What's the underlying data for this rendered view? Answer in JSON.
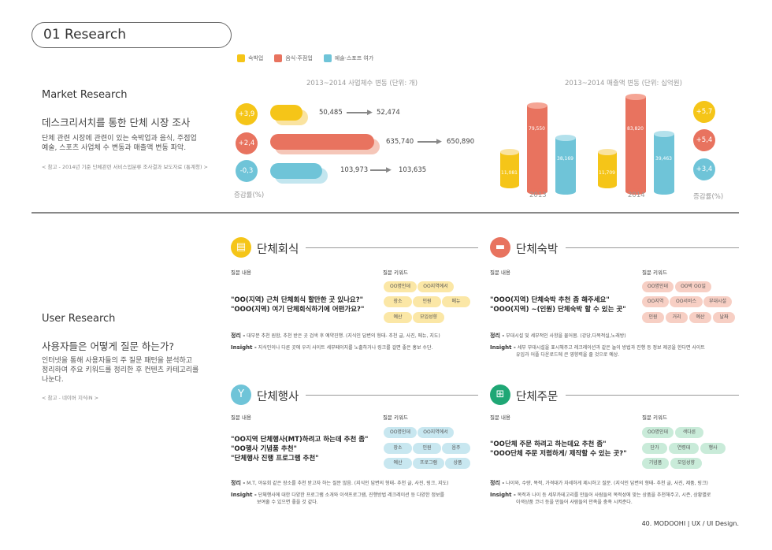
{
  "header": {
    "title": "01 Research"
  },
  "market": {
    "title": "Market Research",
    "subtitle": "데스크리서치를 통한 단체 시장 조사",
    "desc_1": "단체 관련 시장에 관련이 있는 숙박업과 음식, 주점업",
    "desc_2": "예술, 스포츠 사업체 수 변동과 매출액 변동 파악.",
    "note": "< 참고 - 2014년 기준 단체관련 서비스업분류 조사결과 보도자료 (통계청) >"
  },
  "legend": [
    {
      "label": "숙박업",
      "color": "#F5C518"
    },
    {
      "label": "음식·주점업",
      "color": "#E8735F"
    },
    {
      "label": "예술·스포프 여가",
      "color": "#6FC4D8"
    }
  ],
  "chart_left": {
    "caption": "2013~2014 사업체수 변동 (단위: 개)",
    "axis_label": "증감률(%)",
    "rows": [
      {
        "rate": "+3,9",
        "from": "50,485",
        "to": "52,474",
        "color": "#F5C518",
        "shadow": "#FAE3A0"
      },
      {
        "rate": "+2,4",
        "from": "635,740",
        "to": "650,890",
        "color": "#E8735F",
        "shadow": "#F5C6B8"
      },
      {
        "rate": "-0,3",
        "from": "103,973",
        "to": "103,635",
        "color": "#6FC4D8",
        "shadow": "#C3E6EF"
      }
    ]
  },
  "chart_right": {
    "caption": "2013~2014 매출액 변동 (단위: 십억원)",
    "axis_label": "증감률(%)",
    "years": [
      "2013",
      "2014"
    ],
    "values_2013": [
      "11,081",
      "79,550",
      "38,169"
    ],
    "values_2014": [
      "11,709",
      "83,820",
      "39,463"
    ],
    "rates": [
      "+5,7",
      "+5,4",
      "+3,4"
    ]
  },
  "user": {
    "title": "User Research",
    "subtitle": "사용자들은 어떻게 질문 하는가?",
    "desc_1": "인터넷을 통해 사용자들의 주 질문 패턴을 분석하고",
    "desc_2": "정리하여 주요 키워드를 정리한 후 컨텐츠 카테고리를",
    "desc_3": "나눈다.",
    "note": "< 참고 - 네이버 지식iN >"
  },
  "labels": {
    "question": "질문 내용",
    "keyword": "질문 키워드",
    "summary": "정리 -",
    "insight": "Insight -"
  },
  "categories": [
    {
      "title": "단체회식",
      "color": "#F5C518",
      "kwcolor": "#FBE7A6",
      "q1": "\"OO(지역) 근처 단체회식 할만한 곳 있나요?\"",
      "q2": "\"OOO(지역) 여기 단체회식하기에 어떤가요?\"",
      "q3": "",
      "keywords": [
        "OO명인데",
        "OO지역에서",
        "장소",
        "인원",
        "메뉴",
        "예산",
        "모임성향"
      ],
      "summary": "대부분 추천 원함, 추천 받은 곳 검색 후 예약진행. (지식인 답변의 형태- 추천 글, 사진, 메뉴, 지도)",
      "insight": "지식인이나 다른 곳에 우리 사이트 세부페이지를 노출하거나 링크를 걸면 좋은 홍보 수단.",
      "insight2": ""
    },
    {
      "title": "단체숙박",
      "color": "#E8735F",
      "kwcolor": "#F7CFC4",
      "q1": "\"OOO(지역) 단체숙박 추천 좀 해주세요\"",
      "q2": "\"OOO(지역) ~(인원) 단체숙박 할 수 있는 곳\"",
      "q3": "",
      "keywords": [
        "OO명인데",
        "OO박 OO일",
        "OO지역",
        "OO서비스",
        "부대시설",
        "인원",
        "거리",
        "예산",
        "날짜"
      ],
      "summary": "부대시설 및 세부적인 사항을 물어봄. (강당,다목적실,노래방)",
      "insight": "세부 부대시설을 표시해주고 레크레이션과 같은 놀이 방법과 진행 등 정보 제공을 한다면 사이트",
      "insight2": "유입과 어플 다운로드에 큰 영향력을 줄 것으로 예상."
    },
    {
      "title": "단체행사",
      "color": "#6FC4D8",
      "kwcolor": "#C8E7F0",
      "q1": "\"OO지역 단체행사(MT)하려고 하는데 추천 좀\"",
      "q2": "\"OO행사 기념품 추천\"",
      "q3": "\"단체행사 진행 프로그램 추천\"",
      "keywords": [
        "OO명인데",
        "OO지역에서",
        "장소",
        "인원",
        "음주",
        "예산",
        "프로그램",
        "상품"
      ],
      "summary": "M.T, 야유회 같은 장소를 추천 받고자 하는 질문 많음. (지식인 답변의 형태- 추천 글, 사진, 링크, 지도)",
      "insight": "단체행사에 대한 다양한 프로그램 소개와 이색프로그램, 진행방법 레크레이션 등 다양한 정보를",
      "insight2": "보여줄 수 있으면 좋을 것 같다."
    },
    {
      "title": "단체주문",
      "color": "#1FA775",
      "kwcolor": "#C9EBD9",
      "q1": "\"OO단체 주문 하려고 하는데요 추천 좀\"",
      "q2": "\"OOO단체 주문 저렴하게/ 제작할 수 있는 곳?\"",
      "q3": "",
      "keywords": [
        "OO명인데",
        "색다른",
        "단가",
        "연령대",
        "행사",
        "기념품",
        "모임성향"
      ],
      "summary": "나이와, 수량, 목적, 가격대가 자세하게 제시하고 질문. (지식인 답변의 형태- 추천 글, 사진, 제품, 링크)",
      "insight": "목적과 나이 등 세부카테고리를 만들어 사람들의 목적성에 맞는 상품을 추천해주고, 시즌, 상황별로",
      "insight2": "이색상품 코너 등을 만들어 사람들의 만족을 충족 시켜준다."
    }
  ],
  "footer": "40. MODOOHI  |  UX / UI Design."
}
